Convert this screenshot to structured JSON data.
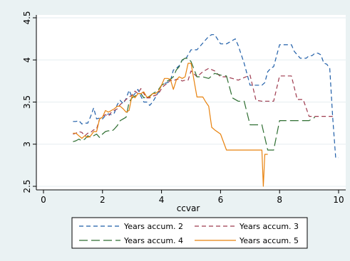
{
  "chart_data": {
    "type": "line",
    "title": "",
    "xlabel": "ccvar",
    "ylabel": "",
    "xlim": [
      0,
      10
    ],
    "ylim": [
      2.5,
      4.5
    ],
    "x_ticks": [
      "0",
      "2",
      "4",
      "6",
      "8",
      "10"
    ],
    "y_ticks": [
      "2.5",
      "3",
      "3.5",
      "4",
      "4.5"
    ],
    "grid": "horizontal",
    "legend_position": "bottom",
    "background": "#eaf2f3",
    "plot_background": "#ffffff",
    "series": [
      {
        "name": "Years accum. 2",
        "color": "#1f5ea8",
        "dash": "6,4",
        "x": [
          1.0,
          1.1,
          1.2,
          1.3,
          1.4,
          1.5,
          1.6,
          1.7,
          1.8,
          1.9,
          2.0,
          2.1,
          2.2,
          2.3,
          2.4,
          2.5,
          2.6,
          2.7,
          2.8,
          2.9,
          3.0,
          3.1,
          3.2,
          3.3,
          3.4,
          3.5,
          3.6,
          3.7,
          3.8,
          3.9,
          4.0,
          4.1,
          4.2,
          4.3,
          4.4,
          4.5,
          4.6,
          4.7,
          4.8,
          4.9,
          5.0,
          5.2,
          5.4,
          5.6,
          5.7,
          5.8,
          6.0,
          6.2,
          6.4,
          6.5,
          6.6,
          6.8,
          7.0,
          7.2,
          7.4,
          7.5,
          7.6,
          7.7,
          7.8,
          8.0,
          8.2,
          8.4,
          8.5,
          8.7,
          8.9,
          9.0,
          9.1,
          9.2,
          9.3,
          9.4,
          9.5,
          9.6,
          9.7,
          9.8,
          9.9,
          10.0
        ],
        "y": [
          3.27,
          3.27,
          3.28,
          3.24,
          3.25,
          3.25,
          3.33,
          3.43,
          3.3,
          3.31,
          3.3,
          3.34,
          3.36,
          3.35,
          3.37,
          3.47,
          3.52,
          3.48,
          3.54,
          3.64,
          3.56,
          3.6,
          3.65,
          3.57,
          3.5,
          3.5,
          3.46,
          3.5,
          3.56,
          3.62,
          3.7,
          3.72,
          3.73,
          3.75,
          3.88,
          3.9,
          3.93,
          4.0,
          4.0,
          4.06,
          4.12,
          4.12,
          4.2,
          4.28,
          4.3,
          4.3,
          4.19,
          4.19,
          4.23,
          4.25,
          4.17,
          3.96,
          3.7,
          3.7,
          3.7,
          3.73,
          3.86,
          3.9,
          3.92,
          4.18,
          4.18,
          4.18,
          4.1,
          4.02,
          4.02,
          4.05,
          4.05,
          4.08,
          4.08,
          4.06,
          3.96,
          3.95,
          3.9,
          3.32,
          2.84,
          2.84
        ]
      },
      {
        "name": "Years accum. 3",
        "color": "#9e3a4e",
        "dash": "6,4",
        "x": [
          1.0,
          1.1,
          1.2,
          1.3,
          1.4,
          1.5,
          1.6,
          1.7,
          1.8,
          1.9,
          2.0,
          2.1,
          2.2,
          2.3,
          2.4,
          2.5,
          2.6,
          2.7,
          2.8,
          2.9,
          3.0,
          3.1,
          3.2,
          3.3,
          3.4,
          3.5,
          3.6,
          3.7,
          3.8,
          3.9,
          4.0,
          4.1,
          4.2,
          4.3,
          4.4,
          4.5,
          4.6,
          4.7,
          4.8,
          4.9,
          5.0,
          5.2,
          5.4,
          5.6,
          5.8,
          6.0,
          6.2,
          6.4,
          6.6,
          6.8,
          7.0,
          7.2,
          7.4,
          7.6,
          7.8,
          8.0,
          8.2,
          8.4,
          8.6,
          8.8,
          9.0,
          9.2,
          9.4,
          9.6,
          9.8
        ],
        "y": [
          3.12,
          3.13,
          3.15,
          3.14,
          3.1,
          3.13,
          3.14,
          3.17,
          3.18,
          3.3,
          3.33,
          3.35,
          3.33,
          3.38,
          3.4,
          3.42,
          3.47,
          3.5,
          3.53,
          3.56,
          3.58,
          3.63,
          3.6,
          3.66,
          3.6,
          3.55,
          3.55,
          3.57,
          3.58,
          3.6,
          3.66,
          3.7,
          3.72,
          3.76,
          3.75,
          3.77,
          3.77,
          3.75,
          3.76,
          3.76,
          3.87,
          3.8,
          3.86,
          3.9,
          3.87,
          3.8,
          3.8,
          3.78,
          3.76,
          3.79,
          3.82,
          3.52,
          3.51,
          3.51,
          3.51,
          3.81,
          3.81,
          3.81,
          3.53,
          3.53,
          3.33,
          3.33,
          3.33,
          3.33,
          3.33
        ]
      },
      {
        "name": "Years accum. 4",
        "color": "#2e6e31",
        "dash": "12,5",
        "x": [
          1.0,
          1.1,
          1.2,
          1.3,
          1.4,
          1.5,
          1.6,
          1.7,
          1.8,
          1.9,
          2.0,
          2.1,
          2.2,
          2.3,
          2.4,
          2.5,
          2.6,
          2.7,
          2.8,
          2.9,
          3.0,
          3.1,
          3.2,
          3.3,
          3.4,
          3.5,
          3.6,
          3.7,
          3.8,
          3.9,
          4.0,
          4.1,
          4.2,
          4.3,
          4.4,
          4.5,
          4.6,
          4.7,
          4.8,
          4.9,
          5.0,
          5.2,
          5.4,
          5.6,
          5.8,
          6.0,
          6.2,
          6.4,
          6.6,
          6.8,
          7.0,
          7.2,
          7.4,
          7.6,
          7.8,
          8.0,
          8.2,
          8.4,
          8.6,
          8.8,
          9.0,
          9.2
        ],
        "y": [
          3.03,
          3.04,
          3.06,
          3.04,
          3.06,
          3.1,
          3.08,
          3.1,
          3.12,
          3.08,
          3.12,
          3.15,
          3.16,
          3.15,
          3.18,
          3.22,
          3.28,
          3.3,
          3.32,
          3.5,
          3.55,
          3.57,
          3.6,
          3.6,
          3.55,
          3.56,
          3.57,
          3.6,
          3.62,
          3.65,
          3.7,
          3.72,
          3.75,
          3.77,
          3.8,
          3.88,
          3.92,
          4.0,
          4.02,
          4.02,
          3.98,
          3.8,
          3.8,
          3.78,
          3.84,
          3.82,
          3.81,
          3.55,
          3.51,
          3.51,
          3.23,
          3.23,
          3.23,
          2.93,
          2.93,
          3.28,
          3.28,
          3.28,
          3.28,
          3.28,
          3.28,
          3.32
        ]
      },
      {
        "name": "Years accum. 5",
        "color": "#e8820e",
        "dash": "",
        "x": [
          1.0,
          1.1,
          1.2,
          1.3,
          1.4,
          1.5,
          1.6,
          1.7,
          1.8,
          1.9,
          2.0,
          2.1,
          2.2,
          2.3,
          2.4,
          2.5,
          2.6,
          2.7,
          2.8,
          2.9,
          3.0,
          3.1,
          3.2,
          3.3,
          3.4,
          3.5,
          3.6,
          3.7,
          3.8,
          3.9,
          4.0,
          4.1,
          4.2,
          4.3,
          4.4,
          4.5,
          4.6,
          4.7,
          4.8,
          4.9,
          5.0,
          5.2,
          5.4,
          5.5,
          5.6,
          5.7,
          5.8,
          6.0,
          6.2,
          6.4,
          6.6,
          6.8,
          7.0,
          7.2,
          7.4,
          7.45,
          7.5,
          7.6
        ],
        "y": [
          3.13,
          3.13,
          3.1,
          3.07,
          3.1,
          3.08,
          3.1,
          3.15,
          3.15,
          3.3,
          3.32,
          3.4,
          3.38,
          3.4,
          3.42,
          3.45,
          3.45,
          3.42,
          3.38,
          3.4,
          3.58,
          3.55,
          3.6,
          3.6,
          3.62,
          3.56,
          3.56,
          3.6,
          3.6,
          3.63,
          3.7,
          3.78,
          3.78,
          3.77,
          3.65,
          3.76,
          3.8,
          3.78,
          3.8,
          3.96,
          3.96,
          3.56,
          3.56,
          3.5,
          3.45,
          3.2,
          3.17,
          3.12,
          2.93,
          2.93,
          2.93,
          2.93,
          2.93,
          2.93,
          2.93,
          2.5,
          2.88,
          2.88
        ]
      }
    ]
  }
}
